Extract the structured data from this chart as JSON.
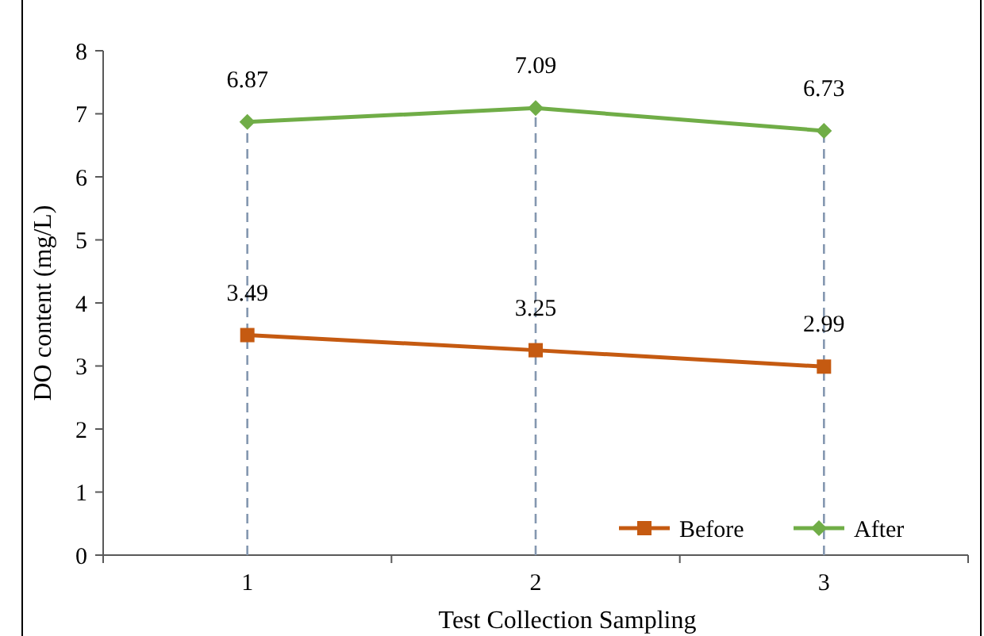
{
  "chart_data": {
    "type": "line",
    "xlabel": "Test Collection Sampling",
    "ylabel": "DO content (mg/L)",
    "categories": [
      "1",
      "2",
      "3"
    ],
    "series": [
      {
        "name": "Before",
        "color": "#c55a11",
        "values": [
          3.49,
          3.25,
          2.99
        ],
        "marker": "square"
      },
      {
        "name": "After",
        "color": "#70ad47",
        "values": [
          6.87,
          7.09,
          6.73
        ],
        "marker": "diamond"
      }
    ],
    "ylim": [
      0,
      8
    ],
    "yticks": [
      0,
      1,
      2,
      3,
      4,
      5,
      6,
      7,
      8
    ],
    "data_labels": true,
    "legend": "bottom right",
    "line_style": "solid",
    "ref_lines": [
      {
        "axis": "x",
        "value": "1",
        "color": "#8497b0",
        "line_style": "dashed"
      },
      {
        "axis": "x",
        "value": "2",
        "color": "#8497b0",
        "line_style": "dashed"
      },
      {
        "axis": "x",
        "value": "3",
        "color": "#8497b0",
        "line_style": "dashed"
      }
    ]
  }
}
